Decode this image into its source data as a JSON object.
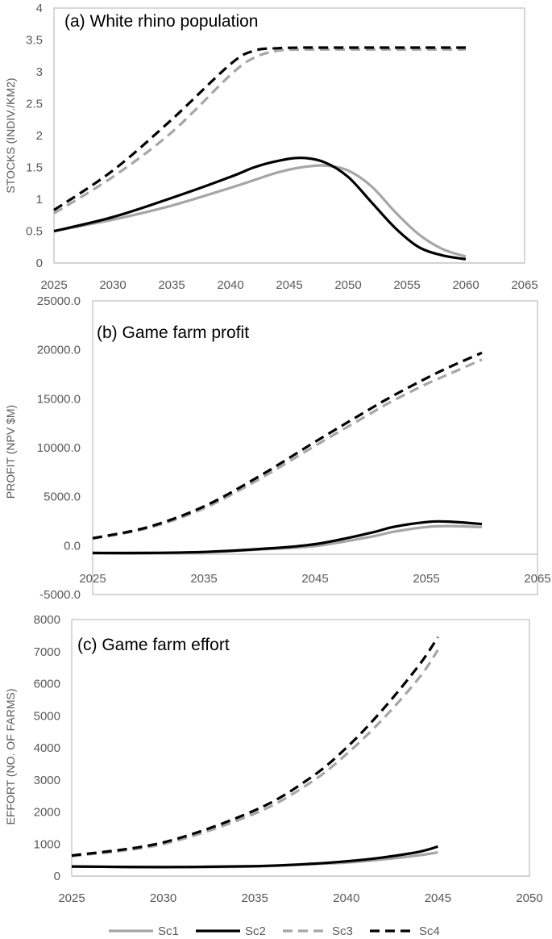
{
  "colors": {
    "light": "#a6a6a6",
    "dark": "#000000",
    "axis": "#bfbfbf",
    "frame": "#bfbfbf",
    "text": "#595959"
  },
  "legend": [
    {
      "name": "Sc1",
      "color": "#a6a6a6",
      "dash": false
    },
    {
      "name": "Sc2",
      "color": "#000000",
      "dash": false
    },
    {
      "name": "Sc3",
      "color": "#a6a6a6",
      "dash": true
    },
    {
      "name": "Sc4",
      "color": "#000000",
      "dash": true
    }
  ],
  "chart_data": [
    {
      "type": "line",
      "title": "(a) White rhino population",
      "ylabel": "STOCKS (INDIV./KM2)",
      "xlim": [
        2025,
        2065
      ],
      "ylim": [
        0,
        4
      ],
      "xticks": [
        "2025",
        "2030",
        "2035",
        "2040",
        "2045",
        "2050",
        "2055",
        "2060",
        "2065"
      ],
      "yticks": [
        "0",
        "0.5",
        "1",
        "1.5",
        "2",
        "2.5",
        "3",
        "3.5",
        "4"
      ],
      "x": [
        2025,
        2030,
        2035,
        2040,
        2042,
        2044,
        2046,
        2048,
        2050,
        2052,
        2054,
        2056,
        2058,
        2060
      ],
      "series": [
        {
          "name": "Sc1",
          "values": [
            0.5,
            0.68,
            0.9,
            1.18,
            1.3,
            1.42,
            1.5,
            1.53,
            1.45,
            1.2,
            0.8,
            0.45,
            0.22,
            0.1
          ]
        },
        {
          "name": "Sc2",
          "values": [
            0.5,
            0.72,
            1.02,
            1.35,
            1.5,
            1.6,
            1.65,
            1.58,
            1.35,
            0.95,
            0.55,
            0.25,
            0.12,
            0.06
          ]
        },
        {
          "name": "Sc3",
          "values": [
            0.78,
            1.35,
            2.05,
            2.95,
            3.22,
            3.33,
            3.35,
            3.35,
            3.35,
            3.35,
            3.35,
            3.35,
            3.35,
            3.35
          ]
        },
        {
          "name": "Sc4",
          "values": [
            0.83,
            1.45,
            2.25,
            3.12,
            3.33,
            3.37,
            3.38,
            3.38,
            3.38,
            3.38,
            3.38,
            3.38,
            3.38,
            3.38
          ]
        }
      ]
    },
    {
      "type": "line",
      "title": "(b) Game farm profit",
      "ylabel": "PROFIT (NPV $M)",
      "xlim": [
        2025,
        2065
      ],
      "ylim": [
        -5000,
        25000
      ],
      "xticks": [
        "2025",
        "2035",
        "2045",
        "2055",
        "2065"
      ],
      "yticks": [
        "-5000.0",
        "0.0",
        "5000.0",
        "10000.0",
        "15000.0",
        "20000.0",
        "25000.0"
      ],
      "x": [
        2025,
        2030,
        2035,
        2040,
        2045,
        2050,
        2052,
        2055,
        2057,
        2060
      ],
      "series": [
        {
          "name": "Sc1",
          "values": [
            -800,
            -800,
            -700,
            -400,
            -50,
            900,
            1400,
            1900,
            2000,
            1900
          ]
        },
        {
          "name": "Sc2",
          "values": [
            -750,
            -750,
            -650,
            -350,
            150,
            1300,
            1900,
            2400,
            2450,
            2200
          ]
        },
        {
          "name": "Sc3",
          "values": [
            700,
            1800,
            3800,
            6800,
            10200,
            13500,
            14800,
            16500,
            17500,
            19000
          ]
        },
        {
          "name": "Sc4",
          "values": [
            750,
            1900,
            4000,
            7100,
            10600,
            14000,
            15300,
            17100,
            18200,
            19700
          ]
        }
      ]
    },
    {
      "type": "line",
      "title": "(c) Game farm effort",
      "ylabel": "EFFORT (NO. OF FARMS)",
      "xlim": [
        2025,
        2050
      ],
      "ylim": [
        0,
        8000
      ],
      "xticks": [
        "2025",
        "2030",
        "2035",
        "2040",
        "2045",
        "2050"
      ],
      "yticks": [
        "0",
        "1000",
        "2000",
        "3000",
        "4000",
        "5000",
        "6000",
        "7000",
        "8000"
      ],
      "x": [
        2025,
        2030,
        2035,
        2038,
        2040,
        2042,
        2044,
        2045
      ],
      "series": [
        {
          "name": "Sc1",
          "values": [
            300,
            280,
            300,
            370,
            420,
            520,
            650,
            740
          ]
        },
        {
          "name": "Sc2",
          "values": [
            300,
            280,
            310,
            380,
            460,
            580,
            760,
            920
          ]
        },
        {
          "name": "Sc3",
          "values": [
            620,
            1000,
            1950,
            2900,
            3800,
            4900,
            6200,
            7050
          ]
        },
        {
          "name": "Sc4",
          "values": [
            640,
            1050,
            2050,
            3050,
            4000,
            5200,
            6600,
            7450
          ]
        }
      ]
    }
  ]
}
